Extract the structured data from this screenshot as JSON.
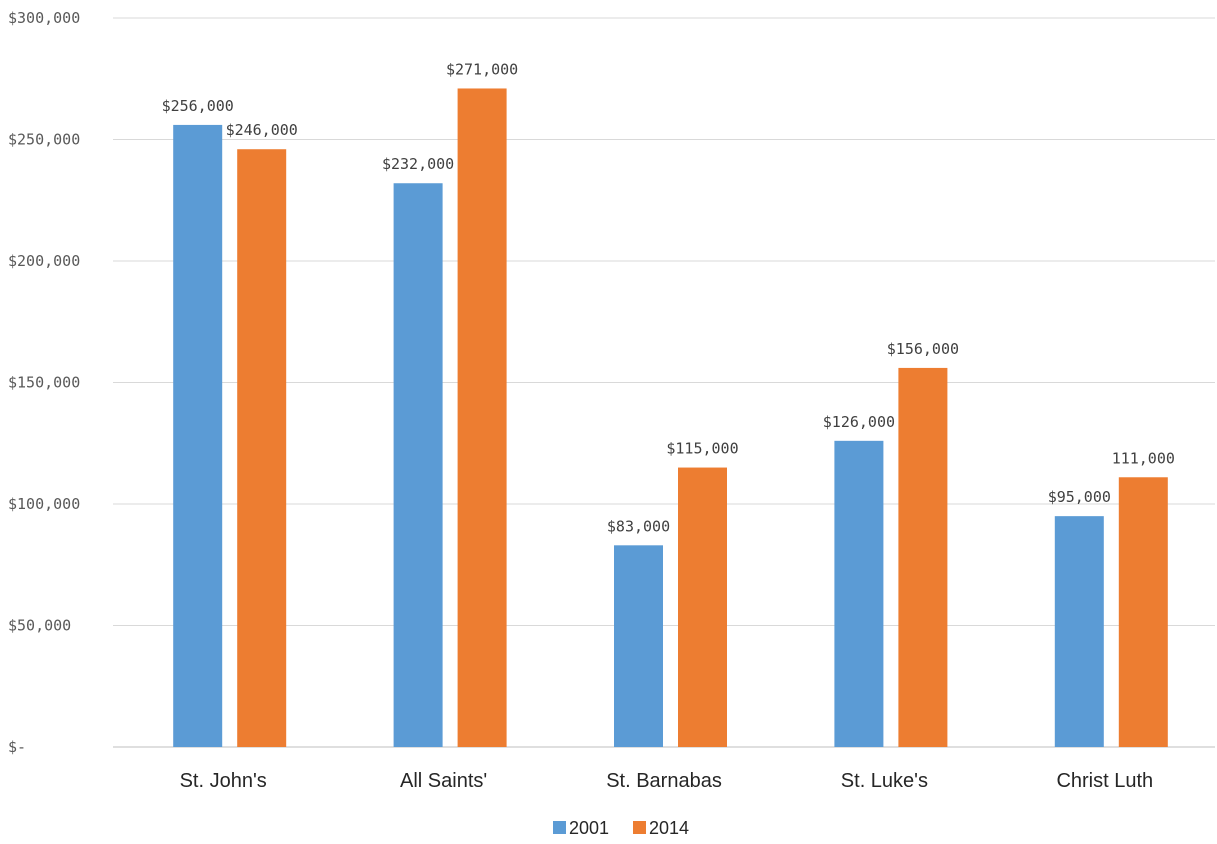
{
  "chart_data": {
    "type": "bar",
    "title": "",
    "xlabel": "",
    "ylabel": "",
    "categories": [
      "St. John's",
      "All Saints'",
      "St. Barnabas",
      "St. Luke's",
      "Christ Luth"
    ],
    "series": [
      {
        "name": "2001",
        "color": "#5b9bd5",
        "values": [
          256000,
          232000,
          83000,
          126000,
          95000
        ],
        "labels": [
          "$256,000",
          "$232,000",
          "$83,000",
          "$126,000",
          "$95,000"
        ]
      },
      {
        "name": "2014",
        "color": "#ed7d31",
        "values": [
          246000,
          271000,
          115000,
          156000,
          111000
        ],
        "labels": [
          "$246,000",
          "$271,000",
          "$115,000",
          "$156,000",
          "111,000"
        ]
      }
    ],
    "ylim": [
      0,
      300000
    ],
    "yticks": [
      0,
      50000,
      100000,
      150000,
      200000,
      250000,
      300000
    ],
    "ytick_labels": [
      "$-",
      "$50,000",
      "$100,000",
      "$150,000",
      "$200,000",
      "$250,000",
      "$300,000"
    ],
    "grid": true,
    "legend_position": "bottom"
  }
}
